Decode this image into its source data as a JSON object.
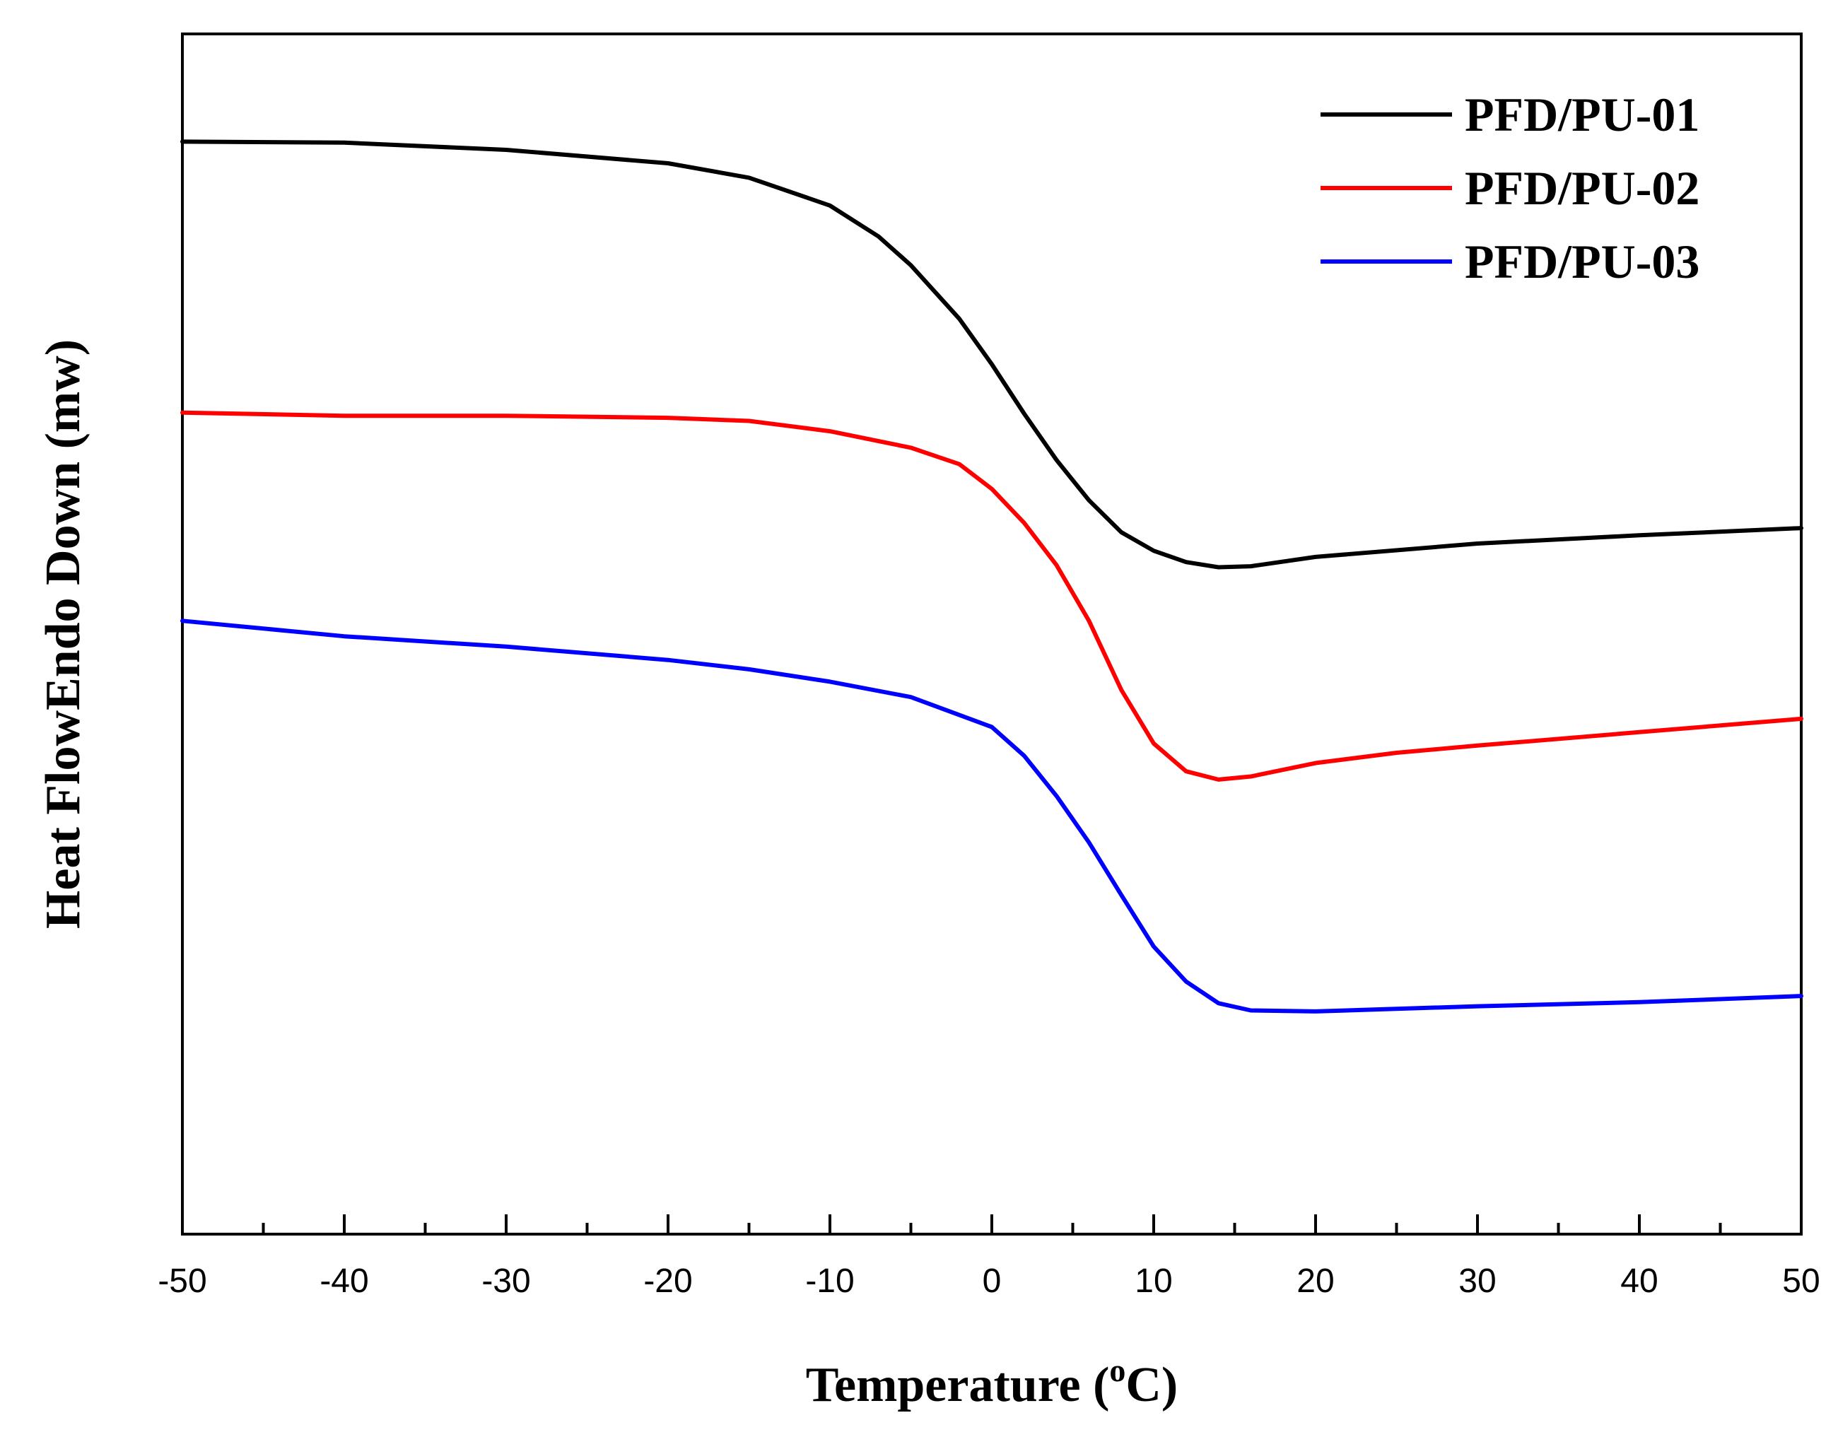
{
  "chart_data": {
    "type": "line",
    "xlabel": "Temperature (",
    "xlabel_sup": "o",
    "xlabel_suffix": "C)",
    "ylabel": "Heat FlowEndo Down (mw)",
    "xlim": [
      -50,
      50
    ],
    "ylim": [
      0,
      1
    ],
    "x_ticks": [
      "-50",
      "-40",
      "-30",
      "-20",
      "-10",
      "0",
      "10",
      "20",
      "30",
      "40",
      "50"
    ],
    "x_tick_values": [
      -50,
      -40,
      -30,
      -20,
      -10,
      0,
      10,
      20,
      30,
      40,
      50
    ],
    "y_tick_labels": "none",
    "grid": false,
    "legend_position": "top-right",
    "series": [
      {
        "name": "PFD/PU-01",
        "color": "#000000",
        "points": [
          [
            -50,
            0.997
          ],
          [
            -40,
            0.996
          ],
          [
            -30,
            0.989
          ],
          [
            -20,
            0.976
          ],
          [
            -15,
            0.962
          ],
          [
            -10,
            0.935
          ],
          [
            -7,
            0.905
          ],
          [
            -5,
            0.877
          ],
          [
            -2,
            0.825
          ],
          [
            0,
            0.781
          ],
          [
            2,
            0.733
          ],
          [
            4,
            0.688
          ],
          [
            6,
            0.649
          ],
          [
            8,
            0.618
          ],
          [
            10,
            0.6
          ],
          [
            12,
            0.589
          ],
          [
            14,
            0.584
          ],
          [
            16,
            0.585
          ],
          [
            20,
            0.594
          ],
          [
            30,
            0.607
          ],
          [
            40,
            0.615
          ],
          [
            50,
            0.622
          ]
        ]
      },
      {
        "name": "PFD/PU-02",
        "color": "#ff0000",
        "points": [
          [
            -50,
            0.734
          ],
          [
            -40,
            0.731
          ],
          [
            -30,
            0.731
          ],
          [
            -20,
            0.729
          ],
          [
            -15,
            0.726
          ],
          [
            -10,
            0.716
          ],
          [
            -5,
            0.7
          ],
          [
            -2,
            0.684
          ],
          [
            0,
            0.66
          ],
          [
            2,
            0.627
          ],
          [
            4,
            0.586
          ],
          [
            6,
            0.532
          ],
          [
            8,
            0.465
          ],
          [
            10,
            0.413
          ],
          [
            12,
            0.386
          ],
          [
            14,
            0.378
          ],
          [
            16,
            0.381
          ],
          [
            20,
            0.394
          ],
          [
            25,
            0.404
          ],
          [
            30,
            0.411
          ],
          [
            40,
            0.424
          ],
          [
            50,
            0.437
          ]
        ]
      },
      {
        "name": "PFD/PU-03",
        "color": "#0000ff",
        "points": [
          [
            -50,
            0.532
          ],
          [
            -40,
            0.517
          ],
          [
            -30,
            0.507
          ],
          [
            -20,
            0.494
          ],
          [
            -15,
            0.485
          ],
          [
            -10,
            0.473
          ],
          [
            -5,
            0.458
          ],
          [
            0,
            0.429
          ],
          [
            2,
            0.401
          ],
          [
            4,
            0.362
          ],
          [
            6,
            0.317
          ],
          [
            8,
            0.266
          ],
          [
            10,
            0.216
          ],
          [
            12,
            0.182
          ],
          [
            14,
            0.161
          ],
          [
            16,
            0.154
          ],
          [
            20,
            0.153
          ],
          [
            30,
            0.158
          ],
          [
            40,
            0.162
          ],
          [
            50,
            0.168
          ]
        ]
      }
    ]
  }
}
